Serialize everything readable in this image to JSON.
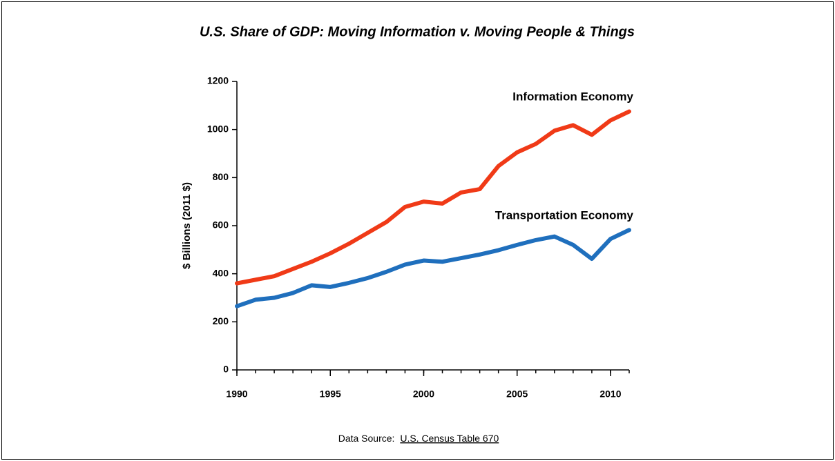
{
  "chart_data": {
    "type": "line",
    "title": "U.S. Share of GDP: Moving Information v. Moving People & Things",
    "y_label": "$ Billions (2011 $)",
    "x": [
      1990,
      1991,
      1992,
      1993,
      1994,
      1995,
      1996,
      1997,
      1998,
      1999,
      2000,
      2001,
      2002,
      2003,
      2004,
      2005,
      2006,
      2007,
      2008,
      2009,
      2010,
      2011
    ],
    "series": [
      {
        "name": "Information Economy",
        "color": "#f03a17",
        "values": [
          360,
          375,
          390,
          420,
          450,
          485,
          525,
          570,
          615,
          678,
          700,
          692,
          738,
          752,
          848,
          905,
          940,
          995,
          1018,
          978,
          1038,
          1075
        ]
      },
      {
        "name": "Transportation Economy",
        "color": "#1f6fbd",
        "values": [
          265,
          292,
          300,
          320,
          352,
          345,
          362,
          382,
          408,
          438,
          455,
          450,
          465,
          480,
          498,
          520,
          540,
          555,
          520,
          462,
          545,
          582
        ]
      }
    ],
    "xlim": [
      1990,
      2011
    ],
    "xticks": [
      1990,
      1995,
      2000,
      2005,
      2010
    ],
    "ylim": [
      0,
      1200
    ],
    "yticks": [
      0,
      200,
      400,
      600,
      800,
      1000,
      1200
    ],
    "source_prefix": "Data Source:",
    "source_link": "U.S. Census Table 670"
  }
}
